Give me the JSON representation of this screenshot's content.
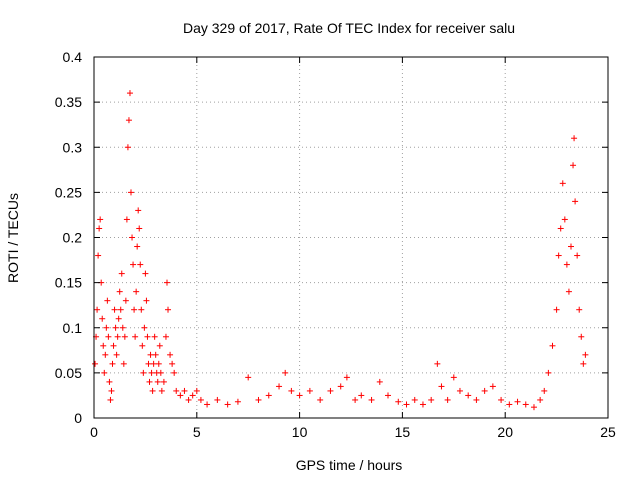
{
  "chart_data": {
    "type": "scatter",
    "title": "Day 329 of 2017, Rate Of TEC Index for receiver salu",
    "xlabel": "GPS time / hours",
    "ylabel": "ROTI / TECUs",
    "xlim": [
      0,
      25
    ],
    "ylim": [
      0,
      0.4
    ],
    "xticks": [
      0,
      5,
      10,
      15,
      20,
      25
    ],
    "xtick_labels": [
      "0",
      "5",
      "10",
      "15",
      "20",
      "25"
    ],
    "yticks": [
      0,
      0.05,
      0.1,
      0.15,
      0.2,
      0.25,
      0.3,
      0.35,
      0.4
    ],
    "ytick_labels": [
      "0",
      "0.05",
      "0.1",
      "0.15",
      "0.2",
      "0.25",
      "0.3",
      "0.35",
      "0.4"
    ],
    "grid": true,
    "marker": "+",
    "color": "#ff0000",
    "series": [
      {
        "points": [
          [
            0.05,
            0.06
          ],
          [
            0.1,
            0.09
          ],
          [
            0.15,
            0.12
          ],
          [
            0.2,
            0.18
          ],
          [
            0.25,
            0.21
          ],
          [
            0.3,
            0.22
          ],
          [
            0.35,
            0.15
          ],
          [
            0.4,
            0.11
          ],
          [
            0.45,
            0.08
          ],
          [
            0.5,
            0.05
          ],
          [
            0.55,
            0.07
          ],
          [
            0.6,
            0.1
          ],
          [
            0.65,
            0.13
          ],
          [
            0.7,
            0.09
          ],
          [
            0.75,
            0.04
          ],
          [
            0.8,
            0.02
          ],
          [
            0.85,
            0.03
          ],
          [
            0.9,
            0.06
          ],
          [
            0.95,
            0.08
          ],
          [
            1.0,
            0.12
          ],
          [
            1.05,
            0.1
          ],
          [
            1.1,
            0.07
          ],
          [
            1.15,
            0.09
          ],
          [
            1.2,
            0.11
          ],
          [
            1.25,
            0.14
          ],
          [
            1.3,
            0.12
          ],
          [
            1.35,
            0.16
          ],
          [
            1.4,
            0.1
          ],
          [
            1.45,
            0.06
          ],
          [
            1.5,
            0.09
          ],
          [
            1.55,
            0.13
          ],
          [
            1.6,
            0.22
          ],
          [
            1.65,
            0.3
          ],
          [
            1.7,
            0.33
          ],
          [
            1.75,
            0.36
          ],
          [
            1.8,
            0.25
          ],
          [
            1.85,
            0.2
          ],
          [
            1.9,
            0.17
          ],
          [
            1.95,
            0.12
          ],
          [
            2.0,
            0.09
          ],
          [
            2.05,
            0.14
          ],
          [
            2.1,
            0.19
          ],
          [
            2.15,
            0.23
          ],
          [
            2.2,
            0.21
          ],
          [
            2.25,
            0.17
          ],
          [
            2.3,
            0.12
          ],
          [
            2.35,
            0.08
          ],
          [
            2.4,
            0.05
          ],
          [
            2.45,
            0.1
          ],
          [
            2.5,
            0.16
          ],
          [
            2.55,
            0.13
          ],
          [
            2.6,
            0.09
          ],
          [
            2.65,
            0.06
          ],
          [
            2.7,
            0.04
          ],
          [
            2.75,
            0.07
          ],
          [
            2.8,
            0.05
          ],
          [
            2.85,
            0.03
          ],
          [
            2.9,
            0.06
          ],
          [
            2.95,
            0.09
          ],
          [
            3.0,
            0.07
          ],
          [
            3.05,
            0.05
          ],
          [
            3.1,
            0.04
          ],
          [
            3.15,
            0.06
          ],
          [
            3.2,
            0.08
          ],
          [
            3.25,
            0.05
          ],
          [
            3.3,
            0.03
          ],
          [
            3.4,
            0.04
          ],
          [
            3.5,
            0.09
          ],
          [
            3.55,
            0.15
          ],
          [
            3.6,
            0.12
          ],
          [
            3.7,
            0.07
          ],
          [
            3.8,
            0.06
          ],
          [
            3.9,
            0.05
          ],
          [
            4.0,
            0.03
          ],
          [
            4.2,
            0.025
          ],
          [
            4.4,
            0.03
          ],
          [
            4.6,
            0.02
          ],
          [
            4.8,
            0.025
          ],
          [
            5.0,
            0.03
          ],
          [
            5.2,
            0.02
          ],
          [
            5.5,
            0.015
          ],
          [
            6.0,
            0.02
          ],
          [
            6.5,
            0.015
          ],
          [
            7.0,
            0.018
          ],
          [
            7.5,
            0.045
          ],
          [
            8.0,
            0.02
          ],
          [
            8.5,
            0.025
          ],
          [
            9.0,
            0.035
          ],
          [
            9.3,
            0.05
          ],
          [
            9.6,
            0.03
          ],
          [
            10.0,
            0.025
          ],
          [
            10.5,
            0.03
          ],
          [
            11.0,
            0.02
          ],
          [
            11.5,
            0.03
          ],
          [
            12.0,
            0.035
          ],
          [
            12.3,
            0.045
          ],
          [
            12.7,
            0.02
          ],
          [
            13.0,
            0.025
          ],
          [
            13.5,
            0.02
          ],
          [
            13.9,
            0.04
          ],
          [
            14.3,
            0.025
          ],
          [
            14.8,
            0.018
          ],
          [
            15.2,
            0.015
          ],
          [
            15.6,
            0.02
          ],
          [
            16.0,
            0.015
          ],
          [
            16.4,
            0.02
          ],
          [
            16.7,
            0.06
          ],
          [
            16.9,
            0.035
          ],
          [
            17.2,
            0.02
          ],
          [
            17.5,
            0.045
          ],
          [
            17.8,
            0.03
          ],
          [
            18.2,
            0.025
          ],
          [
            18.6,
            0.02
          ],
          [
            19.0,
            0.03
          ],
          [
            19.4,
            0.035
          ],
          [
            19.8,
            0.02
          ],
          [
            20.2,
            0.015
          ],
          [
            20.6,
            0.018
          ],
          [
            21.0,
            0.015
          ],
          [
            21.4,
            0.012
          ],
          [
            21.7,
            0.02
          ],
          [
            21.9,
            0.03
          ],
          [
            22.1,
            0.05
          ],
          [
            22.3,
            0.08
          ],
          [
            22.5,
            0.12
          ],
          [
            22.6,
            0.18
          ],
          [
            22.7,
            0.21
          ],
          [
            22.8,
            0.26
          ],
          [
            22.9,
            0.22
          ],
          [
            23.0,
            0.17
          ],
          [
            23.1,
            0.14
          ],
          [
            23.2,
            0.19
          ],
          [
            23.3,
            0.28
          ],
          [
            23.35,
            0.31
          ],
          [
            23.4,
            0.24
          ],
          [
            23.5,
            0.18
          ],
          [
            23.6,
            0.12
          ],
          [
            23.7,
            0.09
          ],
          [
            23.8,
            0.06
          ],
          [
            23.9,
            0.07
          ]
        ]
      }
    ]
  }
}
